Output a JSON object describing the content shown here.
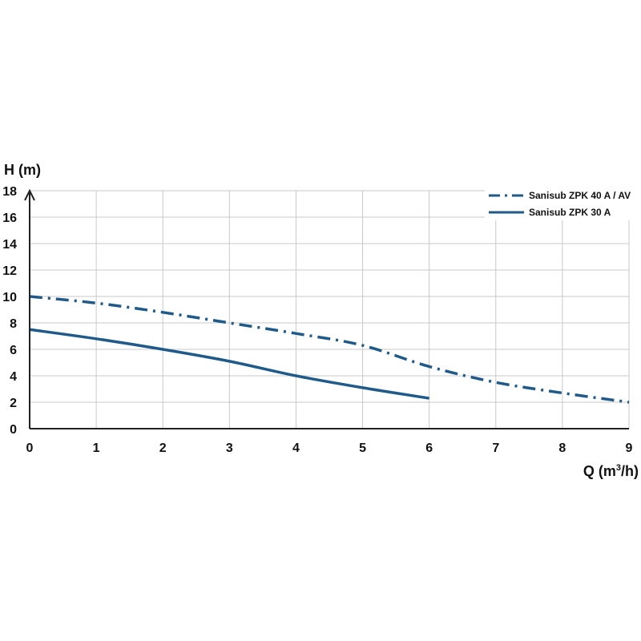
{
  "chart_data": {
    "type": "line",
    "xlabel": "Q (m",
    "xlabel_sup": "3",
    "xlabel_tail": "/h)",
    "ylabel": "H (m)",
    "xlim": [
      0,
      9
    ],
    "ylim": [
      0,
      18
    ],
    "x_ticks": [
      "0",
      "1",
      "2",
      "3",
      "4",
      "5",
      "6",
      "7",
      "8",
      "9"
    ],
    "y_ticks": [
      "0",
      "2",
      "4",
      "6",
      "8",
      "10",
      "12",
      "14",
      "16",
      "18"
    ],
    "grid": true,
    "legend_position": "top-right",
    "series": [
      {
        "name": "Sanisub ZPK 40 A / AV",
        "style": "dash-dot",
        "color": "#1f5a8a",
        "points": [
          [
            0,
            10
          ],
          [
            1,
            9.5
          ],
          [
            2,
            8.8
          ],
          [
            3,
            8.0
          ],
          [
            4,
            7.2
          ],
          [
            5,
            6.3
          ],
          [
            6,
            4.7
          ],
          [
            7,
            3.5
          ],
          [
            8,
            2.7
          ],
          [
            9,
            2.0
          ]
        ]
      },
      {
        "name": "Sanisub ZPK 30 A",
        "style": "solid",
        "color": "#1f5a8a",
        "points": [
          [
            0,
            7.5
          ],
          [
            1,
            6.8
          ],
          [
            2,
            6.0
          ],
          [
            3,
            5.1
          ],
          [
            4,
            4.0
          ],
          [
            5,
            3.1
          ],
          [
            6,
            2.3
          ]
        ]
      }
    ]
  }
}
